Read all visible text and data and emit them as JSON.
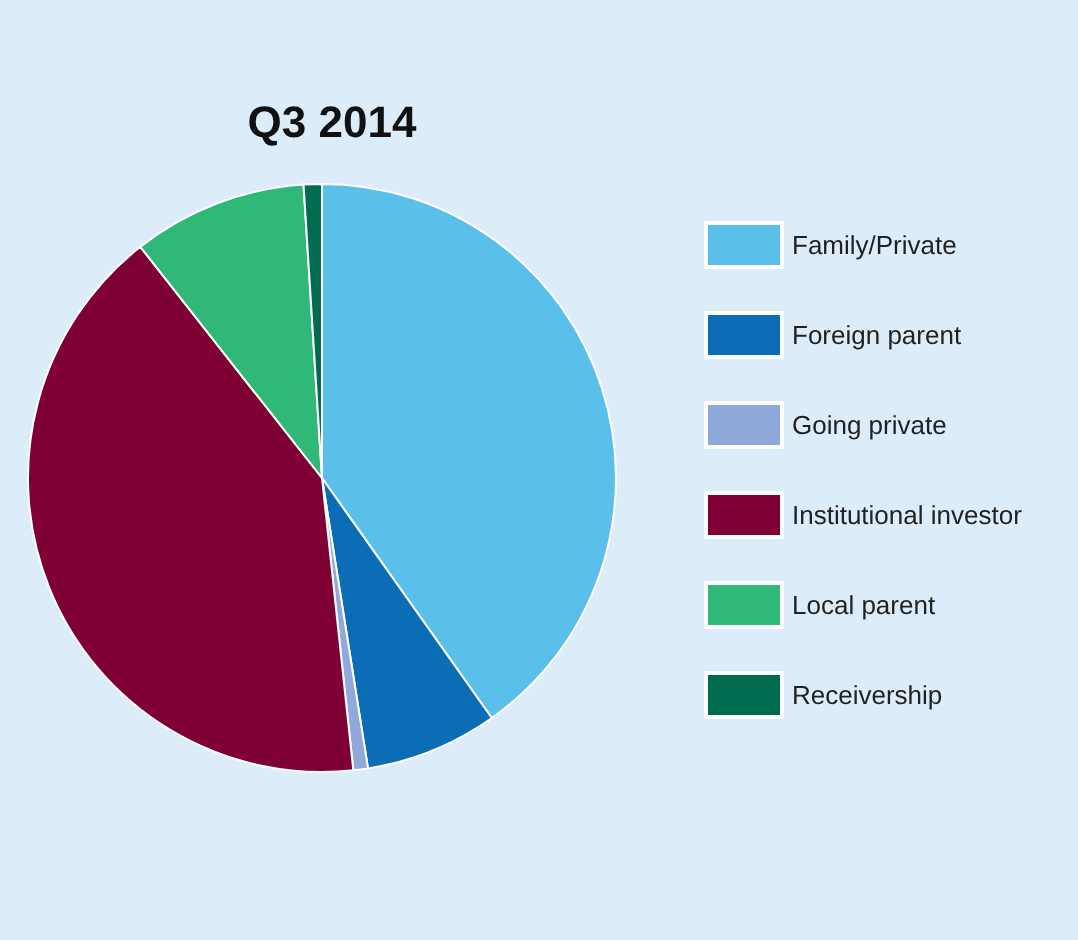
{
  "chart_data": {
    "type": "pie",
    "title": "Q3 2014",
    "categories": [
      "Family/Private",
      "Foreign parent",
      "Going private",
      "Institutional investor",
      "Local parent",
      "Receivership"
    ],
    "values": [
      40.2,
      7.3,
      0.8,
      41.1,
      9.6,
      1.0
    ],
    "colors": [
      "#5bbfec",
      "#0b6db5",
      "#8ea9da",
      "#7e0034",
      "#2fb877",
      "#006b4e"
    ],
    "legend": "right"
  }
}
